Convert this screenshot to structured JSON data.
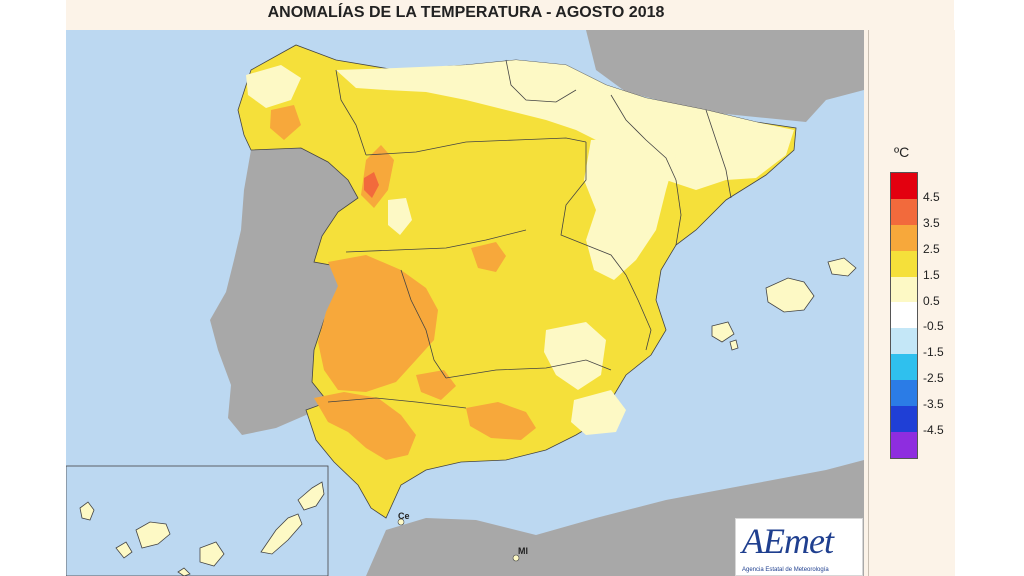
{
  "title": "ANOMALÍAS DE LA TEMPERATURA - AGOSTO 2018",
  "legend": {
    "unit": "ºC",
    "classes": [
      {
        "color": "#e3000f"
      },
      {
        "color": "#f26a3c"
      },
      {
        "color": "#f7a83b"
      },
      {
        "color": "#f5e03a"
      },
      {
        "color": "#fdf9c5"
      },
      {
        "color": "#ffffff"
      },
      {
        "color": "#c4e7f7"
      },
      {
        "color": "#2fc0ee"
      },
      {
        "color": "#2b7ce6"
      },
      {
        "color": "#1f3fd6"
      },
      {
        "color": "#8e2ddf"
      }
    ],
    "ticks": [
      "4.5",
      "3.5",
      "2.5",
      "1.5",
      "0.5",
      "-0.5",
      "-1.5",
      "-2.5",
      "-3.5",
      "-4.5"
    ]
  },
  "map": {
    "colors": {
      "sea": "#bcd8f1",
      "other_land": "#a8a8a8",
      "anomaly_0_5_1_5": "#fdf9c5",
      "anomaly_1_5_2_5": "#f5e03a",
      "anomaly_2_5_3_5": "#f7a83b",
      "anomaly_3_5_4_5": "#f26a3c"
    },
    "labels": {
      "ceuta": "Ce",
      "melilla": "Ml"
    }
  },
  "logo": {
    "text": "AEmet",
    "subtitle": "Agencia Estatal de Meteorología"
  }
}
